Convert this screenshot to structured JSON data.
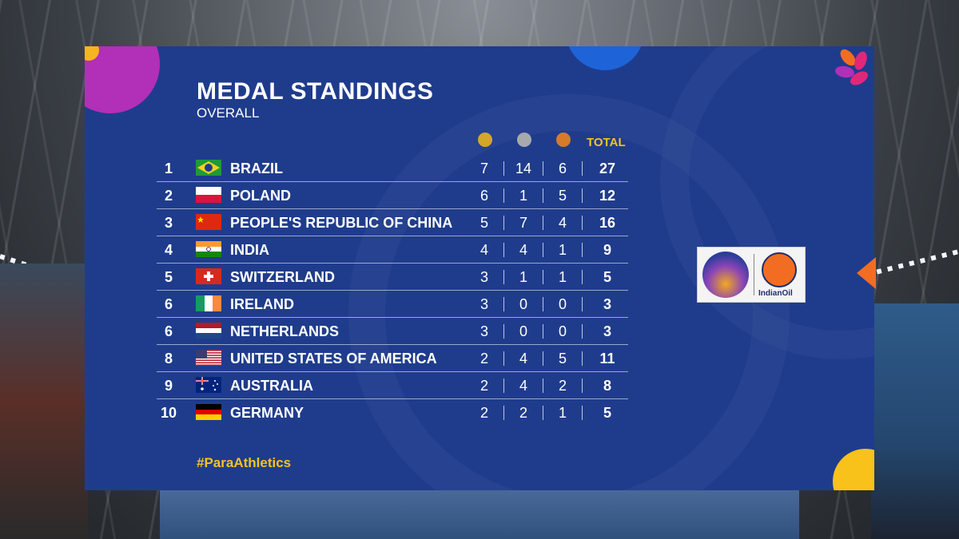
{
  "header": {
    "title": "MEDAL STANDINGS",
    "subtitle": "OVERALL"
  },
  "columns": {
    "gold_color": "#d4a62a",
    "silver_color": "#a7a9ad",
    "bronze_color": "#d77a2a",
    "total_label": "TOTAL"
  },
  "standings": [
    {
      "rank": "1",
      "country": "BRAZIL",
      "flag": "brazil-flag-icon",
      "gold": "7",
      "silver": "14",
      "bronze": "6",
      "total": "27"
    },
    {
      "rank": "2",
      "country": "POLAND",
      "flag": "poland-flag-icon",
      "gold": "6",
      "silver": "1",
      "bronze": "5",
      "total": "12"
    },
    {
      "rank": "3",
      "country": "PEOPLE'S REPUBLIC OF CHINA",
      "flag": "china-flag-icon",
      "gold": "5",
      "silver": "7",
      "bronze": "4",
      "total": "16"
    },
    {
      "rank": "4",
      "country": "INDIA",
      "flag": "india-flag-icon",
      "gold": "4",
      "silver": "4",
      "bronze": "1",
      "total": "9"
    },
    {
      "rank": "5",
      "country": "SWITZERLAND",
      "flag": "switzerland-flag-icon",
      "gold": "3",
      "silver": "1",
      "bronze": "1",
      "total": "5"
    },
    {
      "rank": "6",
      "country": "IRELAND",
      "flag": "ireland-flag-icon",
      "gold": "3",
      "silver": "0",
      "bronze": "0",
      "total": "3"
    },
    {
      "rank": "6",
      "country": "NETHERLANDS",
      "flag": "netherlands-flag-icon",
      "gold": "3",
      "silver": "0",
      "bronze": "0",
      "total": "3"
    },
    {
      "rank": "8",
      "country": "UNITED STATES OF AMERICA",
      "flag": "usa-flag-icon",
      "gold": "2",
      "silver": "4",
      "bronze": "5",
      "total": "11"
    },
    {
      "rank": "9",
      "country": "AUSTRALIA",
      "flag": "australia-flag-icon",
      "gold": "2",
      "silver": "4",
      "bronze": "2",
      "total": "8"
    },
    {
      "rank": "10",
      "country": "GERMANY",
      "flag": "germany-flag-icon",
      "gold": "2",
      "silver": "2",
      "bronze": "1",
      "total": "5"
    }
  ],
  "footer": {
    "hashtag": "#ParaAthletics"
  },
  "sponsor": {
    "name": "IndianOil"
  },
  "theme": {
    "panel_bg": "#1f3c8c",
    "accent_yellow": "#f6c21e",
    "accent_magenta": "#b22fb8",
    "accent_orange": "#f26d21"
  }
}
